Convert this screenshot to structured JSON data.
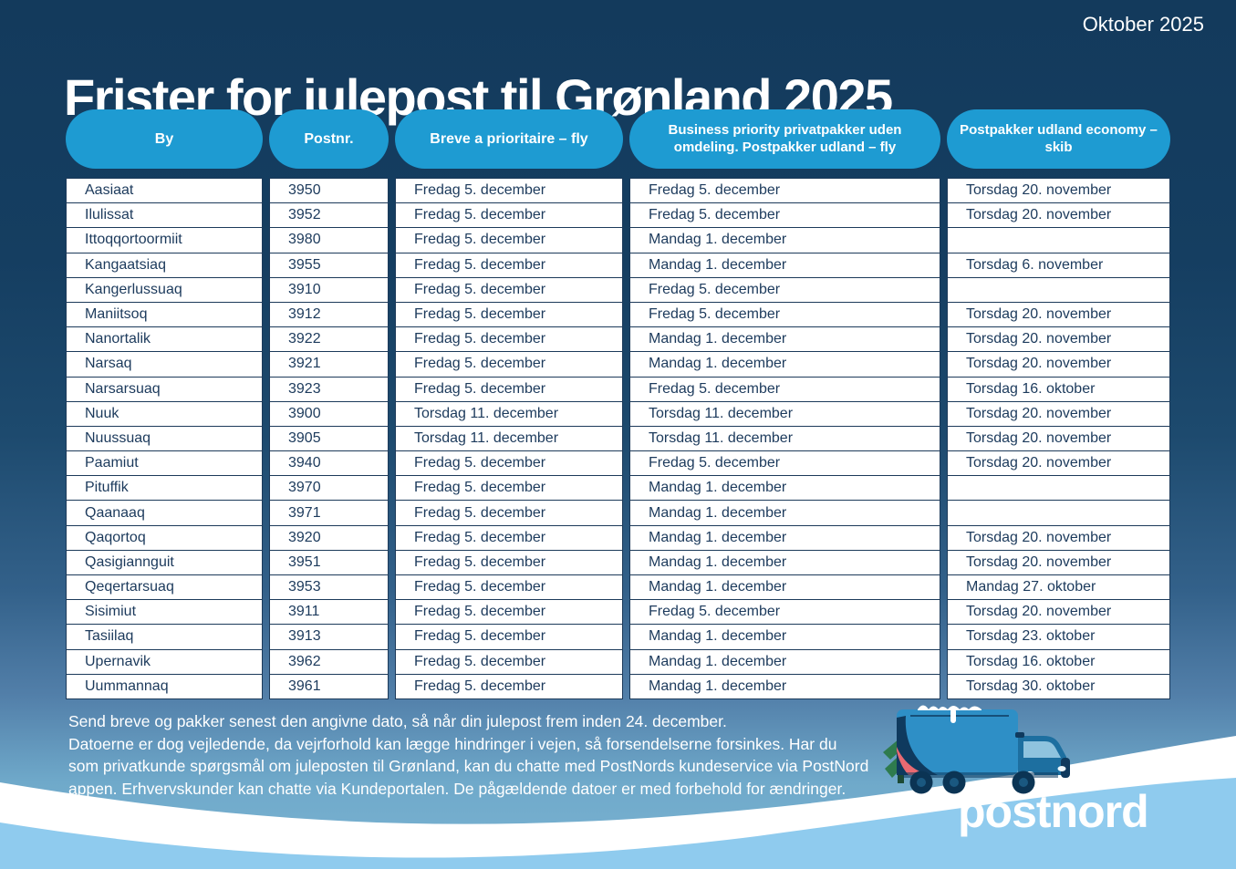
{
  "meta": {
    "date_label": "Oktober 2025"
  },
  "title": "Frister for julepost til Grønland 2025",
  "table": {
    "headers": [
      "By",
      "Postnr.",
      "Breve a prioritaire – fly",
      "Business priority privatpakker uden omdeling. Postpakker udland – fly",
      "Postpakker udland economy – skib"
    ],
    "rows": [
      [
        "Aasiaat",
        "3950",
        "Fredag 5. december",
        "Fredag 5. december",
        "Torsdag 20. november"
      ],
      [
        "Ilulissat",
        "3952",
        "Fredag 5. december",
        "Fredag 5. december",
        "Torsdag 20. november"
      ],
      [
        "Ittoqqortoormiit",
        "3980",
        "Fredag 5. december",
        "Mandag 1. december",
        ""
      ],
      [
        "Kangaatsiaq",
        "3955",
        "Fredag 5. december",
        "Mandag 1. december",
        "Torsdag 6. november"
      ],
      [
        "Kangerlussuaq",
        "3910",
        "Fredag 5. december",
        "Fredag 5. december",
        ""
      ],
      [
        "Maniitsoq",
        "3912",
        "Fredag 5. december",
        "Fredag 5. december",
        "Torsdag 20. november"
      ],
      [
        "Nanortalik",
        "3922",
        "Fredag 5. december",
        "Mandag 1. december",
        "Torsdag 20. november"
      ],
      [
        "Narsaq",
        "3921",
        "Fredag 5. december",
        "Mandag 1. december",
        "Torsdag 20. november"
      ],
      [
        "Narsarsuaq",
        "3923",
        "Fredag 5. december",
        "Fredag 5. december",
        "Torsdag 16. oktober"
      ],
      [
        "Nuuk",
        "3900",
        "Torsdag 11. december",
        "Torsdag 11. december",
        "Torsdag 20. november"
      ],
      [
        "Nuussuaq",
        "3905",
        "Torsdag 11. december",
        "Torsdag 11. december",
        "Torsdag 20. november"
      ],
      [
        "Paamiut",
        "3940",
        "Fredag 5. december",
        "Fredag 5. december",
        "Torsdag 20. november"
      ],
      [
        "Pituffik",
        "3970",
        "Fredag 5. december",
        "Mandag 1. december",
        ""
      ],
      [
        "Qaanaaq",
        "3971",
        "Fredag 5. december",
        "Mandag 1. december",
        ""
      ],
      [
        "Qaqortoq",
        "3920",
        "Fredag 5. december",
        "Mandag 1. december",
        "Torsdag 20. november"
      ],
      [
        "Qasigiannguit",
        "3951",
        "Fredag 5. december",
        "Mandag 1. december",
        "Torsdag 20. november"
      ],
      [
        "Qeqertarsuaq",
        "3953",
        "Fredag 5. december",
        "Mandag 1. december",
        "Mandag 27. oktober"
      ],
      [
        "Sisimiut",
        "3911",
        "Fredag 5. december",
        "Fredag 5. december",
        "Torsdag 20. november"
      ],
      [
        "Tasiilaq",
        "3913",
        "Fredag 5. december",
        "Mandag 1. december",
        "Torsdag 23. oktober"
      ],
      [
        "Upernavik",
        "3962",
        "Fredag 5. december",
        "Mandag 1. december",
        "Torsdag 16. oktober"
      ],
      [
        "Uummannaq",
        "3961",
        "Fredag 5. december",
        "Mandag 1. december",
        "Torsdag 30. oktober"
      ]
    ]
  },
  "footer": {
    "lines": [
      "Send breve og pakker senest den angivne dato, så når din julepost frem inden 24. december.",
      "Datoerne er dog vejledende, da vejrforhold kan lægge hindringer i vejen, så forsendelserne forsinkes. Har du",
      "som privatkunde spørgsmål om juleposten til Grønland, kan du chatte med PostNords kundeservice via PostNord",
      "appen. Erhvervskunder kan chatte via Kundeportalen. De pågældende datoer er med forbehold for ændringer."
    ]
  },
  "logo": {
    "text": "postnord"
  },
  "icons": {
    "truck": "christmas-delivery-truck-illustration"
  },
  "colors": {
    "background_top": "#133a5c",
    "background_bottom": "#7bb3d2",
    "header_pill": "#1e9bd2",
    "cell_background": "#ffffff",
    "cell_text": "#1c3a5c",
    "footer_text": "#ffffff",
    "wave_white": "#ffffff",
    "wave_light_blue": "#8fcbee",
    "truck_body": "#2e8fc6",
    "truck_cab": "#1d6fa0",
    "truck_dark": "#0f3a5e",
    "truck_accent_pink": "#e96a72",
    "tree_green": "#2e7b4e"
  }
}
